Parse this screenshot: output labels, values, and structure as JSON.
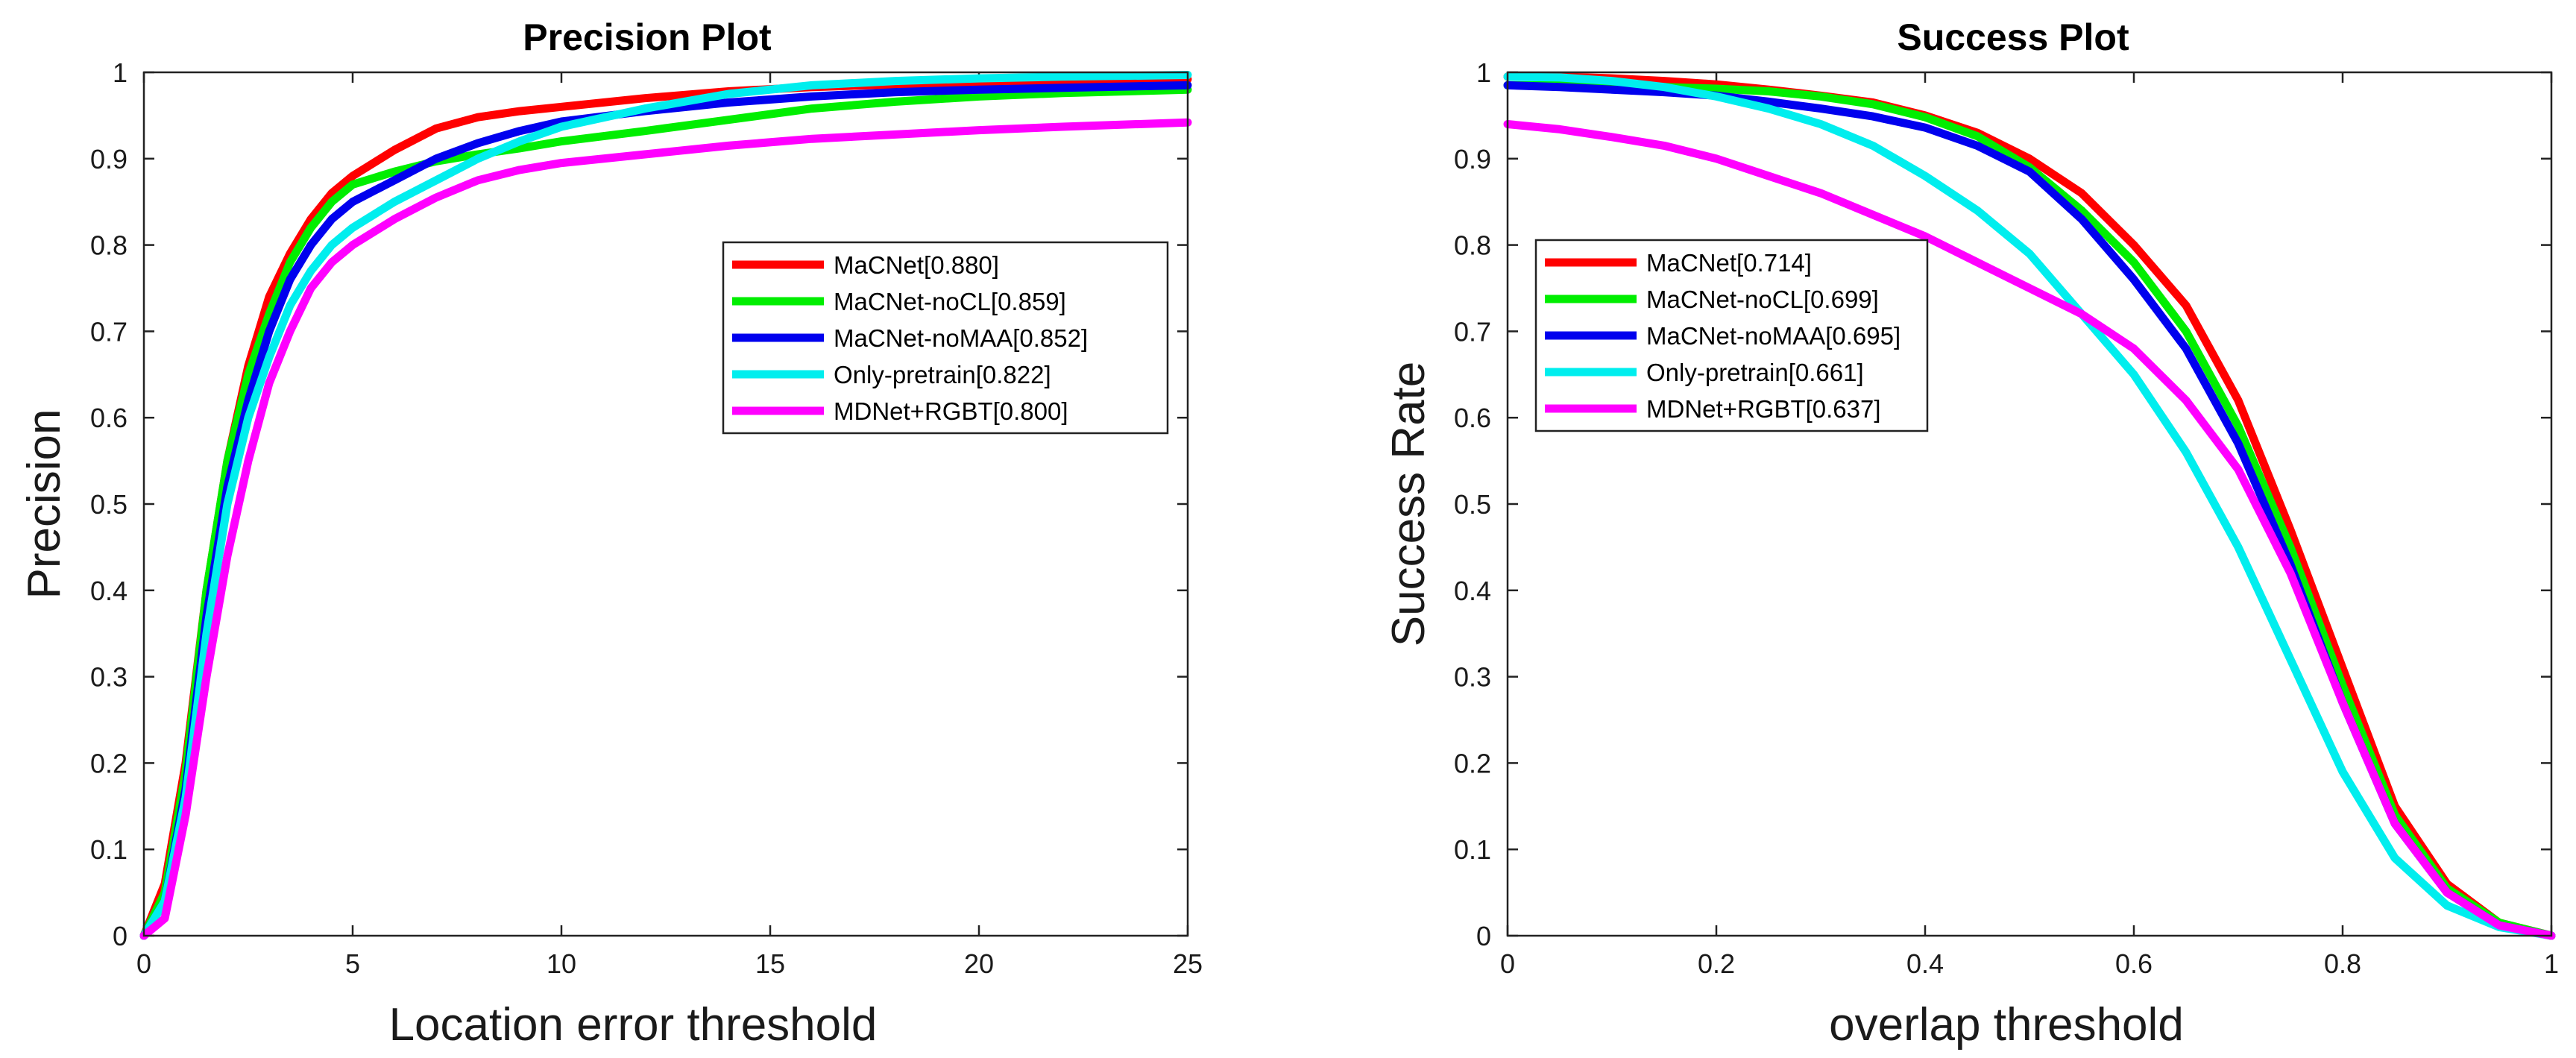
{
  "chart_data": [
    {
      "type": "line",
      "title": "Precision Plot",
      "xlabel": "Location error threshold",
      "ylabel": "Precision",
      "xlim": [
        0,
        25
      ],
      "ylim": [
        0,
        1
      ],
      "xticks": [
        0,
        5,
        10,
        15,
        20,
        25
      ],
      "xticklabels": [
        "0",
        "5",
        "10",
        "15",
        "20",
        "25"
      ],
      "yticks": [
        0,
        0.1,
        0.2,
        0.3,
        0.4,
        0.5,
        0.6,
        0.7,
        0.8,
        0.9,
        1
      ],
      "yticklabels": [
        "0",
        "0.1",
        "0.2",
        "0.3",
        "0.4",
        "0.5",
        "0.6",
        "0.7",
        "0.8",
        "0.9",
        "1"
      ],
      "legend_position": "center-right",
      "x": [
        0,
        0.5,
        1,
        1.5,
        2,
        2.5,
        3,
        3.5,
        4,
        4.5,
        5,
        6,
        7,
        8,
        9,
        10,
        12,
        14,
        16,
        18,
        20,
        22,
        25
      ],
      "series": [
        {
          "name": "MaCNet[0.880]",
          "color": "#ff0000",
          "values": [
            0,
            0.06,
            0.2,
            0.4,
            0.55,
            0.66,
            0.74,
            0.79,
            0.83,
            0.86,
            0.88,
            0.91,
            0.935,
            0.948,
            0.955,
            0.96,
            0.97,
            0.978,
            0.983,
            0.986,
            0.988,
            0.99,
            0.992
          ]
        },
        {
          "name": "MaCNet-noCL[0.859]",
          "color": "#00ee00",
          "values": [
            0,
            0.05,
            0.19,
            0.4,
            0.55,
            0.65,
            0.72,
            0.78,
            0.82,
            0.85,
            0.87,
            0.885,
            0.897,
            0.905,
            0.912,
            0.92,
            0.932,
            0.945,
            0.958,
            0.966,
            0.972,
            0.976,
            0.98
          ]
        },
        {
          "name": "MaCNet-noMAA[0.852]",
          "color": "#0000ee",
          "values": [
            0,
            0.04,
            0.17,
            0.37,
            0.52,
            0.62,
            0.7,
            0.76,
            0.8,
            0.83,
            0.85,
            0.875,
            0.9,
            0.918,
            0.932,
            0.943,
            0.955,
            0.965,
            0.972,
            0.977,
            0.98,
            0.982,
            0.985
          ]
        },
        {
          "name": "Only-pretrain[0.822]",
          "color": "#00eeee",
          "values": [
            0,
            0.04,
            0.16,
            0.35,
            0.5,
            0.6,
            0.67,
            0.73,
            0.77,
            0.8,
            0.82,
            0.85,
            0.875,
            0.9,
            0.92,
            0.937,
            0.958,
            0.975,
            0.985,
            0.99,
            0.993,
            0.995,
            0.997
          ]
        },
        {
          "name": "MDNet+RGBT[0.800]",
          "color": "#ff00ff",
          "values": [
            0,
            0.02,
            0.14,
            0.3,
            0.44,
            0.55,
            0.64,
            0.7,
            0.75,
            0.78,
            0.8,
            0.83,
            0.855,
            0.875,
            0.887,
            0.895,
            0.905,
            0.915,
            0.923,
            0.928,
            0.933,
            0.937,
            0.942
          ]
        }
      ]
    },
    {
      "type": "line",
      "title": "Success Plot",
      "xlabel": "overlap threshold",
      "ylabel": "Success Rate",
      "xlim": [
        0,
        1
      ],
      "ylim": [
        0,
        1
      ],
      "xticks": [
        0,
        0.2,
        0.4,
        0.6,
        0.8,
        1
      ],
      "xticklabels": [
        "0",
        "0.2",
        "0.4",
        "0.6",
        "0.8",
        "1"
      ],
      "yticks": [
        0,
        0.1,
        0.2,
        0.3,
        0.4,
        0.5,
        0.6,
        0.7,
        0.8,
        0.9,
        1
      ],
      "yticklabels": [
        "0",
        "0.1",
        "0.2",
        "0.3",
        "0.4",
        "0.5",
        "0.6",
        "0.7",
        "0.8",
        "0.9",
        "1"
      ],
      "legend_position": "top-left",
      "x": [
        0,
        0.05,
        0.1,
        0.15,
        0.2,
        0.25,
        0.3,
        0.35,
        0.4,
        0.45,
        0.5,
        0.55,
        0.6,
        0.65,
        0.7,
        0.75,
        0.8,
        0.85,
        0.9,
        0.95,
        1
      ],
      "series": [
        {
          "name": "MaCNet[0.714]",
          "color": "#ff0000",
          "values": [
            0.995,
            0.995,
            0.993,
            0.99,
            0.986,
            0.98,
            0.973,
            0.965,
            0.95,
            0.93,
            0.9,
            0.86,
            0.8,
            0.73,
            0.62,
            0.47,
            0.31,
            0.15,
            0.06,
            0.015,
            0
          ]
        },
        {
          "name": "MaCNet-noCL[0.699]",
          "color": "#00ee00",
          "values": [
            0.985,
            0.985,
            0.984,
            0.983,
            0.981,
            0.978,
            0.972,
            0.963,
            0.948,
            0.926,
            0.89,
            0.84,
            0.78,
            0.7,
            0.59,
            0.45,
            0.29,
            0.14,
            0.055,
            0.015,
            0
          ]
        },
        {
          "name": "MaCNet-noMAA[0.695]",
          "color": "#0000ee",
          "values": [
            0.985,
            0.983,
            0.98,
            0.977,
            0.973,
            0.966,
            0.958,
            0.949,
            0.936,
            0.915,
            0.885,
            0.83,
            0.76,
            0.68,
            0.57,
            0.43,
            0.27,
            0.13,
            0.05,
            0.012,
            0
          ]
        },
        {
          "name": "Only-pretrain[0.661]",
          "color": "#00eeee",
          "values": [
            0.995,
            0.994,
            0.99,
            0.983,
            0.972,
            0.958,
            0.94,
            0.915,
            0.88,
            0.84,
            0.79,
            0.72,
            0.65,
            0.56,
            0.45,
            0.32,
            0.19,
            0.09,
            0.035,
            0.01,
            0
          ]
        },
        {
          "name": "MDNet+RGBT[0.637]",
          "color": "#ff00ff",
          "values": [
            0.94,
            0.934,
            0.925,
            0.915,
            0.9,
            0.88,
            0.86,
            0.835,
            0.81,
            0.78,
            0.75,
            0.72,
            0.68,
            0.62,
            0.54,
            0.42,
            0.27,
            0.13,
            0.05,
            0.012,
            0
          ]
        }
      ]
    }
  ]
}
